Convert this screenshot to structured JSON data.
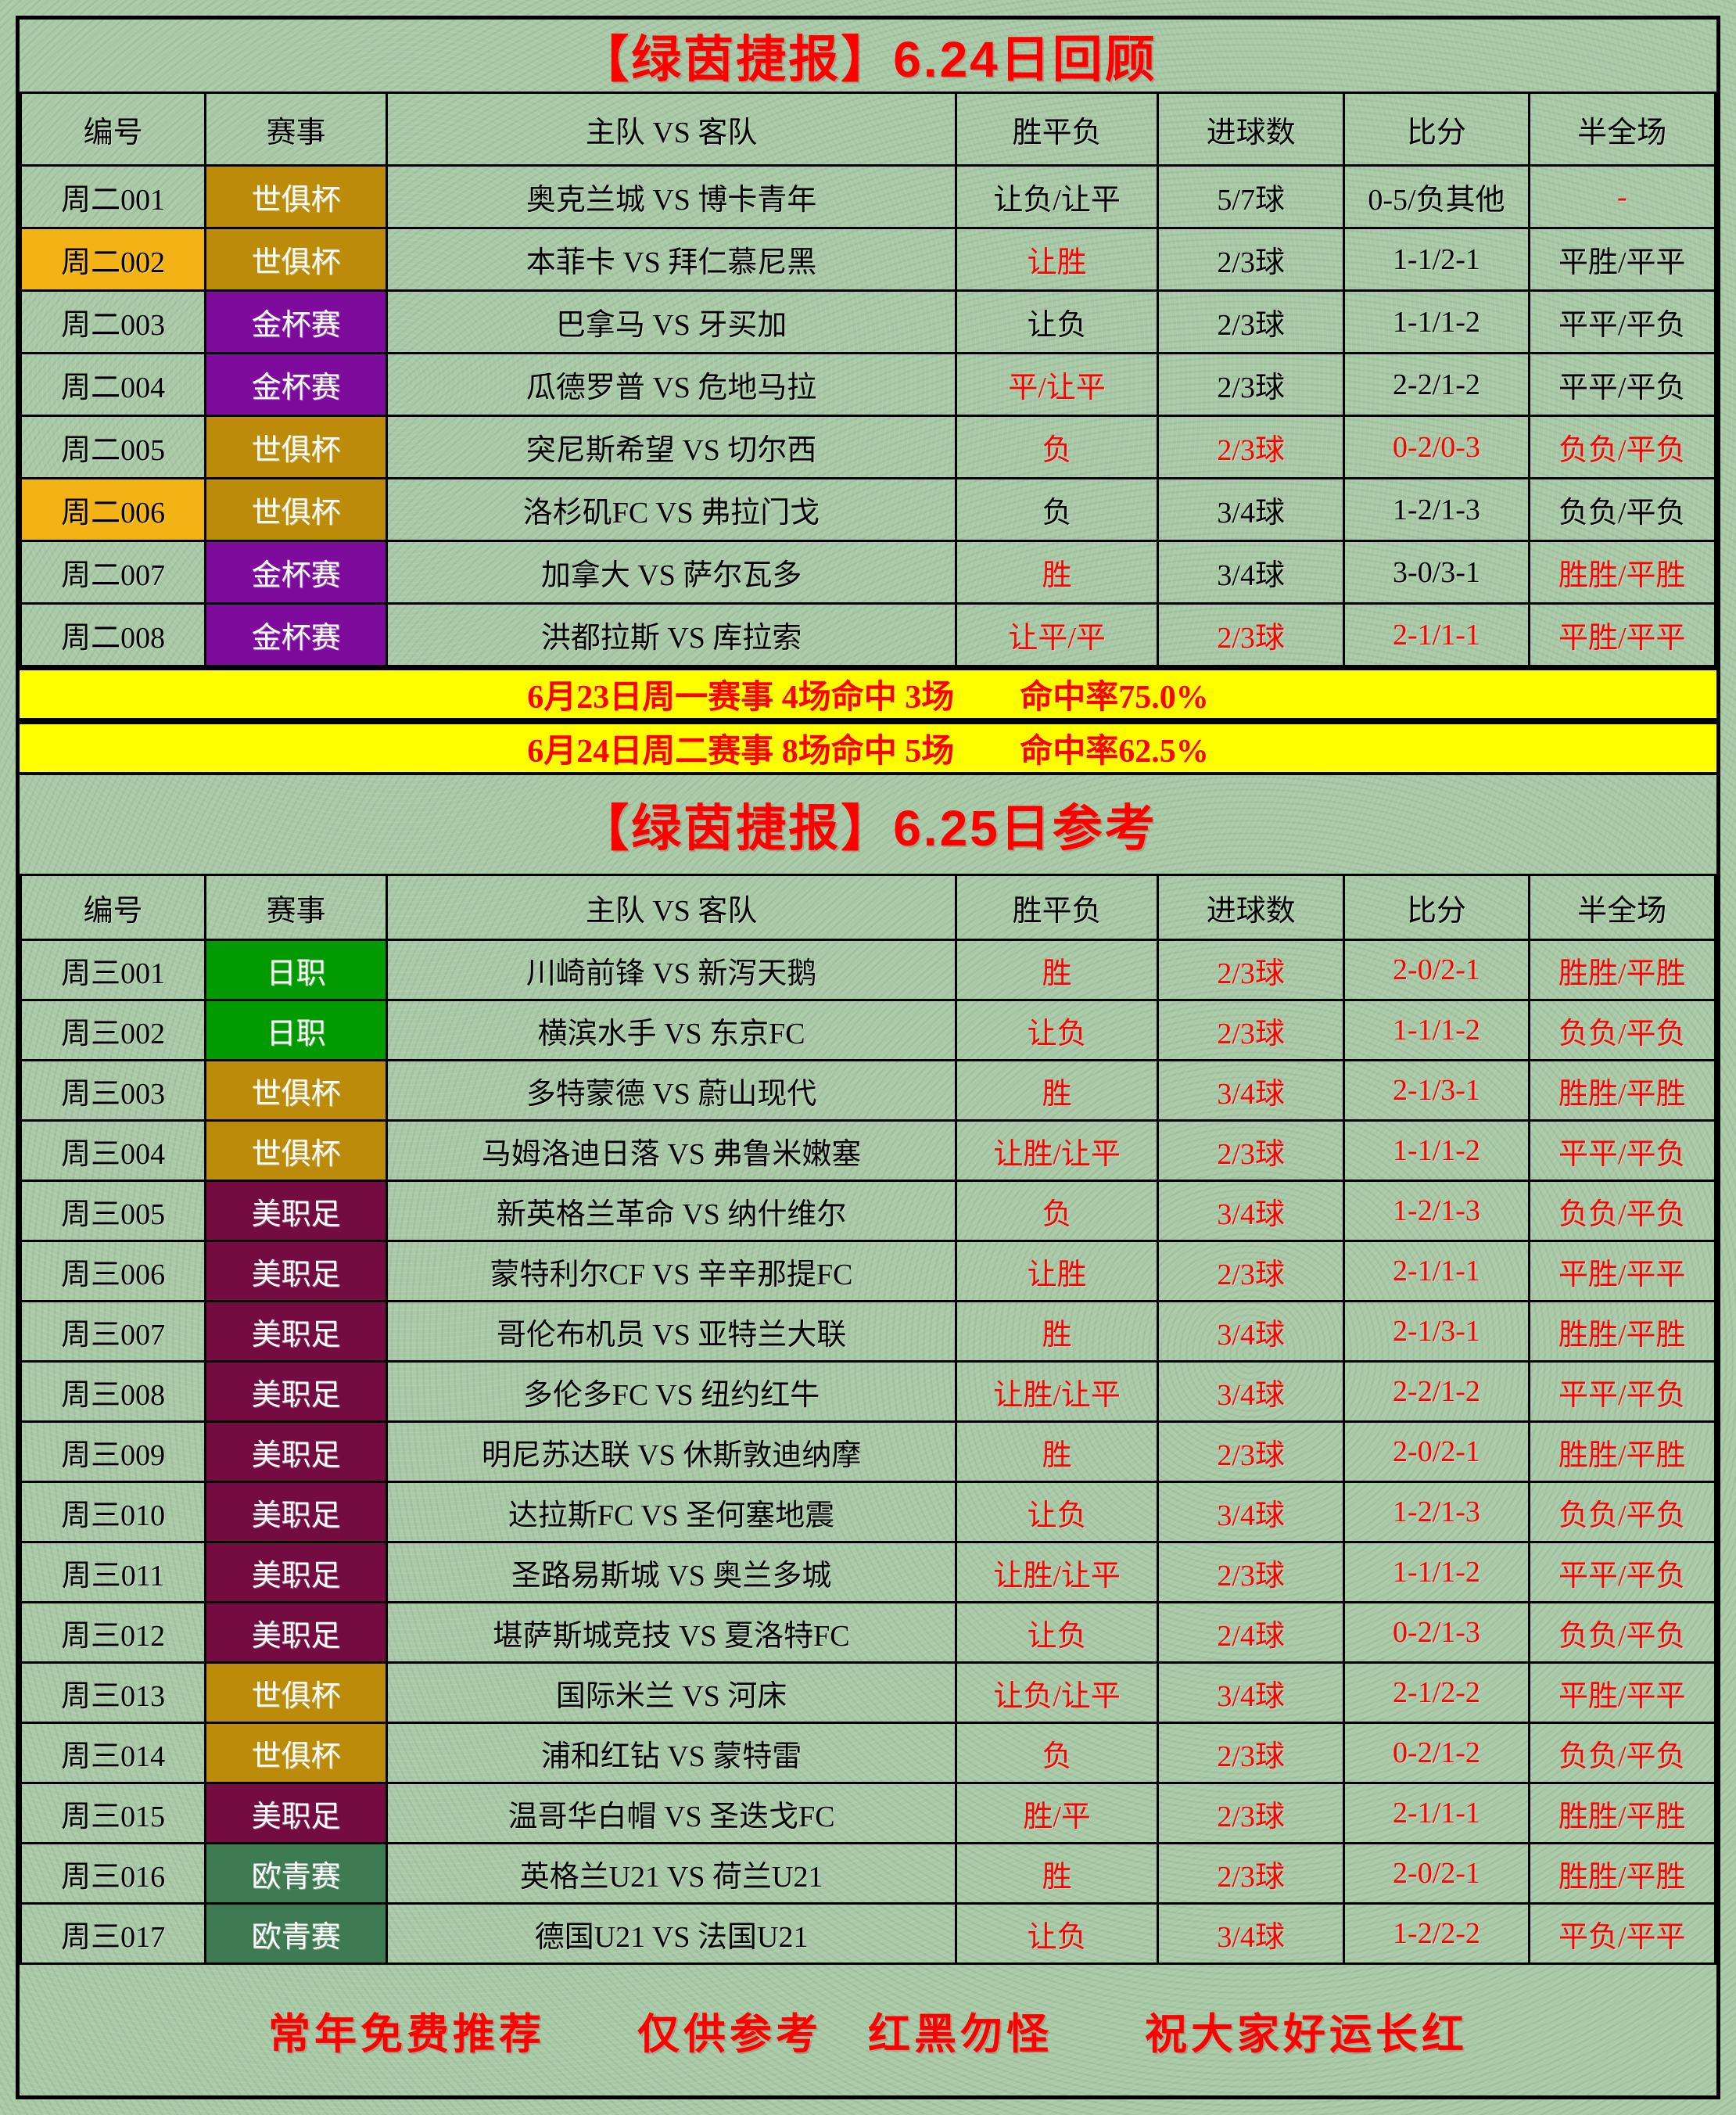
{
  "colors": {
    "page_bg": "#a9c9a7",
    "border": "#000000",
    "red_text": "#fe0000",
    "black_text": "#000000",
    "banner_bg": "#ffff00",
    "highlight_no_bg": "#f4b314",
    "badge_text_color": "#ffffff",
    "league_colors": {
      "世俱杯": "#bb8b09",
      "金杯赛": "#7d0c9d",
      "日职": "#019a01",
      "美职足": "#740b41",
      "欧青赛": "#3e7b52"
    }
  },
  "review": {
    "title": "【绿茵捷报】6.24日回顾",
    "headers": [
      "编号",
      "赛事",
      "主队 VS 客队",
      "胜平负",
      "进球数",
      "比分",
      "半全场"
    ],
    "rows": [
      {
        "no": "周二001",
        "hl": false,
        "league": "世俱杯",
        "match": "奥克兰城 VS 博卡青年",
        "cells": [
          [
            "让负/让平",
            0
          ],
          [
            "5/7球",
            0
          ],
          [
            "0-5/负其他",
            0
          ],
          [
            "-",
            1
          ]
        ]
      },
      {
        "no": "周二002",
        "hl": true,
        "league": "世俱杯",
        "match": "本菲卡 VS 拜仁慕尼黑",
        "cells": [
          [
            "让胜",
            1
          ],
          [
            "2/3球",
            0
          ],
          [
            "1-1/2-1",
            0
          ],
          [
            "平胜/平平",
            0
          ]
        ]
      },
      {
        "no": "周二003",
        "hl": false,
        "league": "金杯赛",
        "match": "巴拿马 VS 牙买加",
        "cells": [
          [
            "让负",
            0
          ],
          [
            "2/3球",
            0
          ],
          [
            "1-1/1-2",
            0
          ],
          [
            "平平/平负",
            0
          ]
        ]
      },
      {
        "no": "周二004",
        "hl": false,
        "league": "金杯赛",
        "match": "瓜德罗普 VS 危地马拉",
        "cells": [
          [
            "平/让平",
            1
          ],
          [
            "2/3球",
            0
          ],
          [
            "2-2/1-2",
            0
          ],
          [
            "平平/平负",
            0
          ]
        ]
      },
      {
        "no": "周二005",
        "hl": false,
        "league": "世俱杯",
        "match": "突尼斯希望 VS 切尔西",
        "cells": [
          [
            "负",
            1
          ],
          [
            "2/3球",
            1
          ],
          [
            "0-2/0-3",
            1
          ],
          [
            "负负/平负",
            1
          ]
        ]
      },
      {
        "no": "周二006",
        "hl": true,
        "league": "世俱杯",
        "match": "洛杉矶FC VS 弗拉门戈",
        "cells": [
          [
            "负",
            0
          ],
          [
            "3/4球",
            0
          ],
          [
            "1-2/1-3",
            0
          ],
          [
            "负负/平负",
            0
          ]
        ]
      },
      {
        "no": "周二007",
        "hl": false,
        "league": "金杯赛",
        "match": "加拿大 VS 萨尔瓦多",
        "cells": [
          [
            "胜",
            1
          ],
          [
            "3/4球",
            0
          ],
          [
            "3-0/3-1",
            0
          ],
          [
            "胜胜/平胜",
            1
          ]
        ]
      },
      {
        "no": "周二008",
        "hl": false,
        "league": "金杯赛",
        "match": "洪都拉斯 VS 库拉索",
        "cells": [
          [
            "让平/平",
            1
          ],
          [
            "2/3球",
            1
          ],
          [
            "2-1/1-1",
            1
          ],
          [
            "平胜/平平",
            1
          ]
        ]
      }
    ]
  },
  "banners": [
    "6月23日周一赛事 4场命中 3场　　命中率75.0%",
    "6月24日周二赛事 8场命中 5场　　命中率62.5%"
  ],
  "reference": {
    "title": "【绿茵捷报】6.25日参考",
    "headers": [
      "编号",
      "赛事",
      "主队 VS 客队",
      "胜平负",
      "进球数",
      "比分",
      "半全场"
    ],
    "rows": [
      {
        "no": "周三001",
        "hl": false,
        "league": "日职",
        "match": "川崎前锋 VS 新泻天鹅",
        "cells": [
          [
            "胜",
            1
          ],
          [
            "2/3球",
            1
          ],
          [
            "2-0/2-1",
            1
          ],
          [
            "胜胜/平胜",
            1
          ]
        ]
      },
      {
        "no": "周三002",
        "hl": false,
        "league": "日职",
        "match": "横滨水手 VS 东京FC",
        "cells": [
          [
            "让负",
            1
          ],
          [
            "2/3球",
            1
          ],
          [
            "1-1/1-2",
            1
          ],
          [
            "负负/平负",
            1
          ]
        ]
      },
      {
        "no": "周三003",
        "hl": false,
        "league": "世俱杯",
        "match": "多特蒙德 VS 蔚山现代",
        "cells": [
          [
            "胜",
            1
          ],
          [
            "3/4球",
            1
          ],
          [
            "2-1/3-1",
            1
          ],
          [
            "胜胜/平胜",
            1
          ]
        ]
      },
      {
        "no": "周三004",
        "hl": false,
        "league": "世俱杯",
        "match": "马姆洛迪日落 VS 弗鲁米嫩塞",
        "cells": [
          [
            "让胜/让平",
            1
          ],
          [
            "2/3球",
            1
          ],
          [
            "1-1/1-2",
            1
          ],
          [
            "平平/平负",
            1
          ]
        ]
      },
      {
        "no": "周三005",
        "hl": false,
        "league": "美职足",
        "match": "新英格兰革命 VS 纳什维尔",
        "cells": [
          [
            "负",
            1
          ],
          [
            "3/4球",
            1
          ],
          [
            "1-2/1-3",
            1
          ],
          [
            "负负/平负",
            1
          ]
        ]
      },
      {
        "no": "周三006",
        "hl": false,
        "league": "美职足",
        "match": "蒙特利尔CF VS 辛辛那提FC",
        "cells": [
          [
            "让胜",
            1
          ],
          [
            "2/3球",
            1
          ],
          [
            "2-1/1-1",
            1
          ],
          [
            "平胜/平平",
            1
          ]
        ]
      },
      {
        "no": "周三007",
        "hl": false,
        "league": "美职足",
        "match": "哥伦布机员 VS 亚特兰大联",
        "cells": [
          [
            "胜",
            1
          ],
          [
            "3/4球",
            1
          ],
          [
            "2-1/3-1",
            1
          ],
          [
            "胜胜/平胜",
            1
          ]
        ]
      },
      {
        "no": "周三008",
        "hl": false,
        "league": "美职足",
        "match": "多伦多FC VS 纽约红牛",
        "cells": [
          [
            "让胜/让平",
            1
          ],
          [
            "3/4球",
            1
          ],
          [
            "2-2/1-2",
            1
          ],
          [
            "平平/平负",
            1
          ]
        ]
      },
      {
        "no": "周三009",
        "hl": false,
        "league": "美职足",
        "match": "明尼苏达联 VS 休斯敦迪纳摩",
        "cells": [
          [
            "胜",
            1
          ],
          [
            "2/3球",
            1
          ],
          [
            "2-0/2-1",
            1
          ],
          [
            "胜胜/平胜",
            1
          ]
        ]
      },
      {
        "no": "周三010",
        "hl": false,
        "league": "美职足",
        "match": "达拉斯FC VS 圣何塞地震",
        "cells": [
          [
            "让负",
            1
          ],
          [
            "3/4球",
            1
          ],
          [
            "1-2/1-3",
            1
          ],
          [
            "负负/平负",
            1
          ]
        ]
      },
      {
        "no": "周三011",
        "hl": false,
        "league": "美职足",
        "match": "圣路易斯城 VS 奥兰多城",
        "cells": [
          [
            "让胜/让平",
            1
          ],
          [
            "2/3球",
            1
          ],
          [
            "1-1/1-2",
            1
          ],
          [
            "平平/平负",
            1
          ]
        ]
      },
      {
        "no": "周三012",
        "hl": false,
        "league": "美职足",
        "match": "堪萨斯城竞技 VS 夏洛特FC",
        "cells": [
          [
            "让负",
            1
          ],
          [
            "2/4球",
            1
          ],
          [
            "0-2/1-3",
            1
          ],
          [
            "负负/平负",
            1
          ]
        ]
      },
      {
        "no": "周三013",
        "hl": false,
        "league": "世俱杯",
        "match": "国际米兰 VS 河床",
        "cells": [
          [
            "让负/让平",
            1
          ],
          [
            "3/4球",
            1
          ],
          [
            "2-1/2-2",
            1
          ],
          [
            "平胜/平平",
            1
          ]
        ]
      },
      {
        "no": "周三014",
        "hl": false,
        "league": "世俱杯",
        "match": "浦和红钻 VS 蒙特雷",
        "cells": [
          [
            "负",
            1
          ],
          [
            "2/3球",
            1
          ],
          [
            "0-2/1-2",
            1
          ],
          [
            "负负/平负",
            1
          ]
        ]
      },
      {
        "no": "周三015",
        "hl": false,
        "league": "美职足",
        "match": "温哥华白帽 VS 圣迭戈FC",
        "cells": [
          [
            "胜/平",
            1
          ],
          [
            "2/3球",
            1
          ],
          [
            "2-1/1-1",
            1
          ],
          [
            "胜胜/平胜",
            1
          ]
        ]
      },
      {
        "no": "周三016",
        "hl": false,
        "league": "欧青赛",
        "match": "英格兰U21 VS 荷兰U21",
        "cells": [
          [
            "胜",
            1
          ],
          [
            "2/3球",
            1
          ],
          [
            "2-0/2-1",
            1
          ],
          [
            "胜胜/平胜",
            1
          ]
        ]
      },
      {
        "no": "周三017",
        "hl": false,
        "league": "欧青赛",
        "match": "德国U21 VS 法国U21",
        "cells": [
          [
            "让负",
            1
          ],
          [
            "3/4球",
            1
          ],
          [
            "1-2/2-2",
            1
          ],
          [
            "平负/平平",
            1
          ]
        ]
      }
    ]
  },
  "footer": "常年免费推荐　　仅供参考　红黑勿怪　　祝大家好运长红"
}
